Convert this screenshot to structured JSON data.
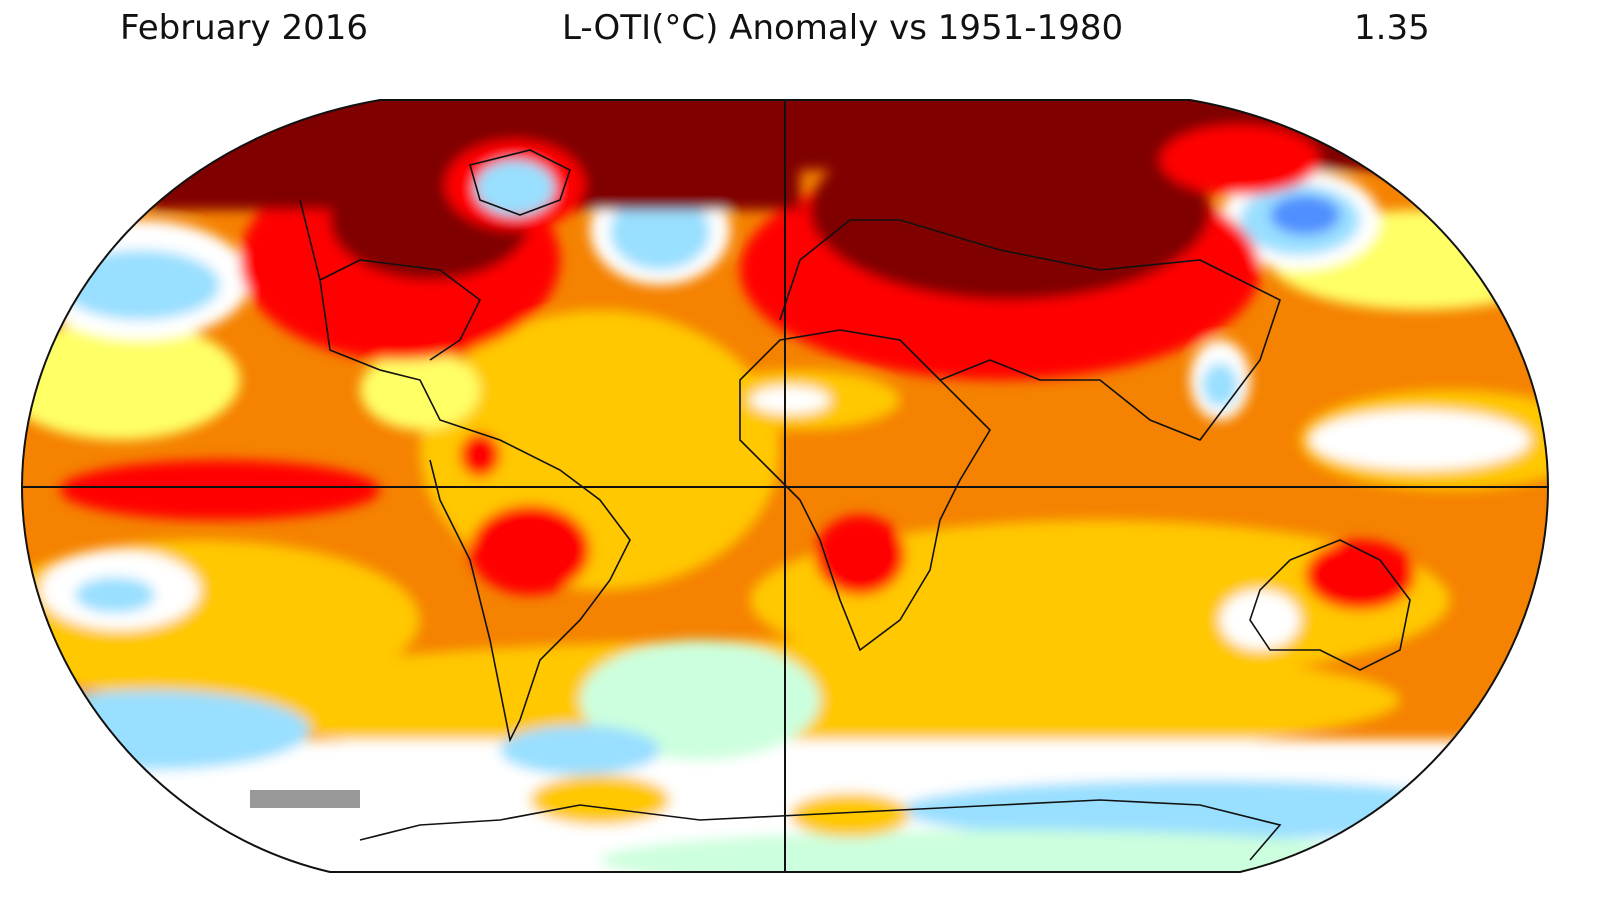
{
  "header": {
    "period": "February 2016",
    "title": "L-OTI(°C) Anomaly vs 1951-1980",
    "global_mean": "1.35"
  },
  "map": {
    "projection": "robinson",
    "palette": {
      "extreme_warm": "#800000",
      "strong_warm": "#ff0000",
      "warm": "#f58200",
      "mild_warm": "#ffc800",
      "slight_warm": "#ffff66",
      "neutral": "#ffffff",
      "slight_cool": "#ccffdd",
      "cool": "#99dfff",
      "strong_cool": "#4f8fff",
      "no_data": "#999999"
    }
  }
}
